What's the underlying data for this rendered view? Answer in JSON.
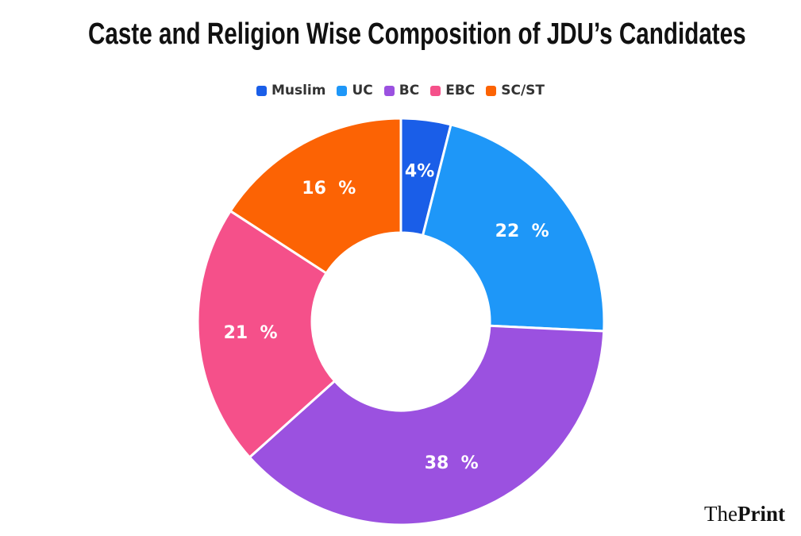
{
  "chart_data": {
    "type": "pie",
    "title": "Caste and Religion Wise Composition of JDU’s Candidates",
    "categories": [
      "Muslim",
      "UC",
      "BC",
      "EBC",
      "SC/ST"
    ],
    "values": [
      4,
      22,
      38,
      21,
      16
    ],
    "labels": [
      "4%",
      "22  %",
      "38  %",
      "21  %",
      "16  %"
    ],
    "colors": [
      "#1a5ee8",
      "#1e97f8",
      "#9b51e0",
      "#f5508a",
      "#fc6304"
    ],
    "donut": true,
    "legend_position": "top-center"
  },
  "brand": {
    "prefix": "The",
    "suffix": "Print"
  }
}
